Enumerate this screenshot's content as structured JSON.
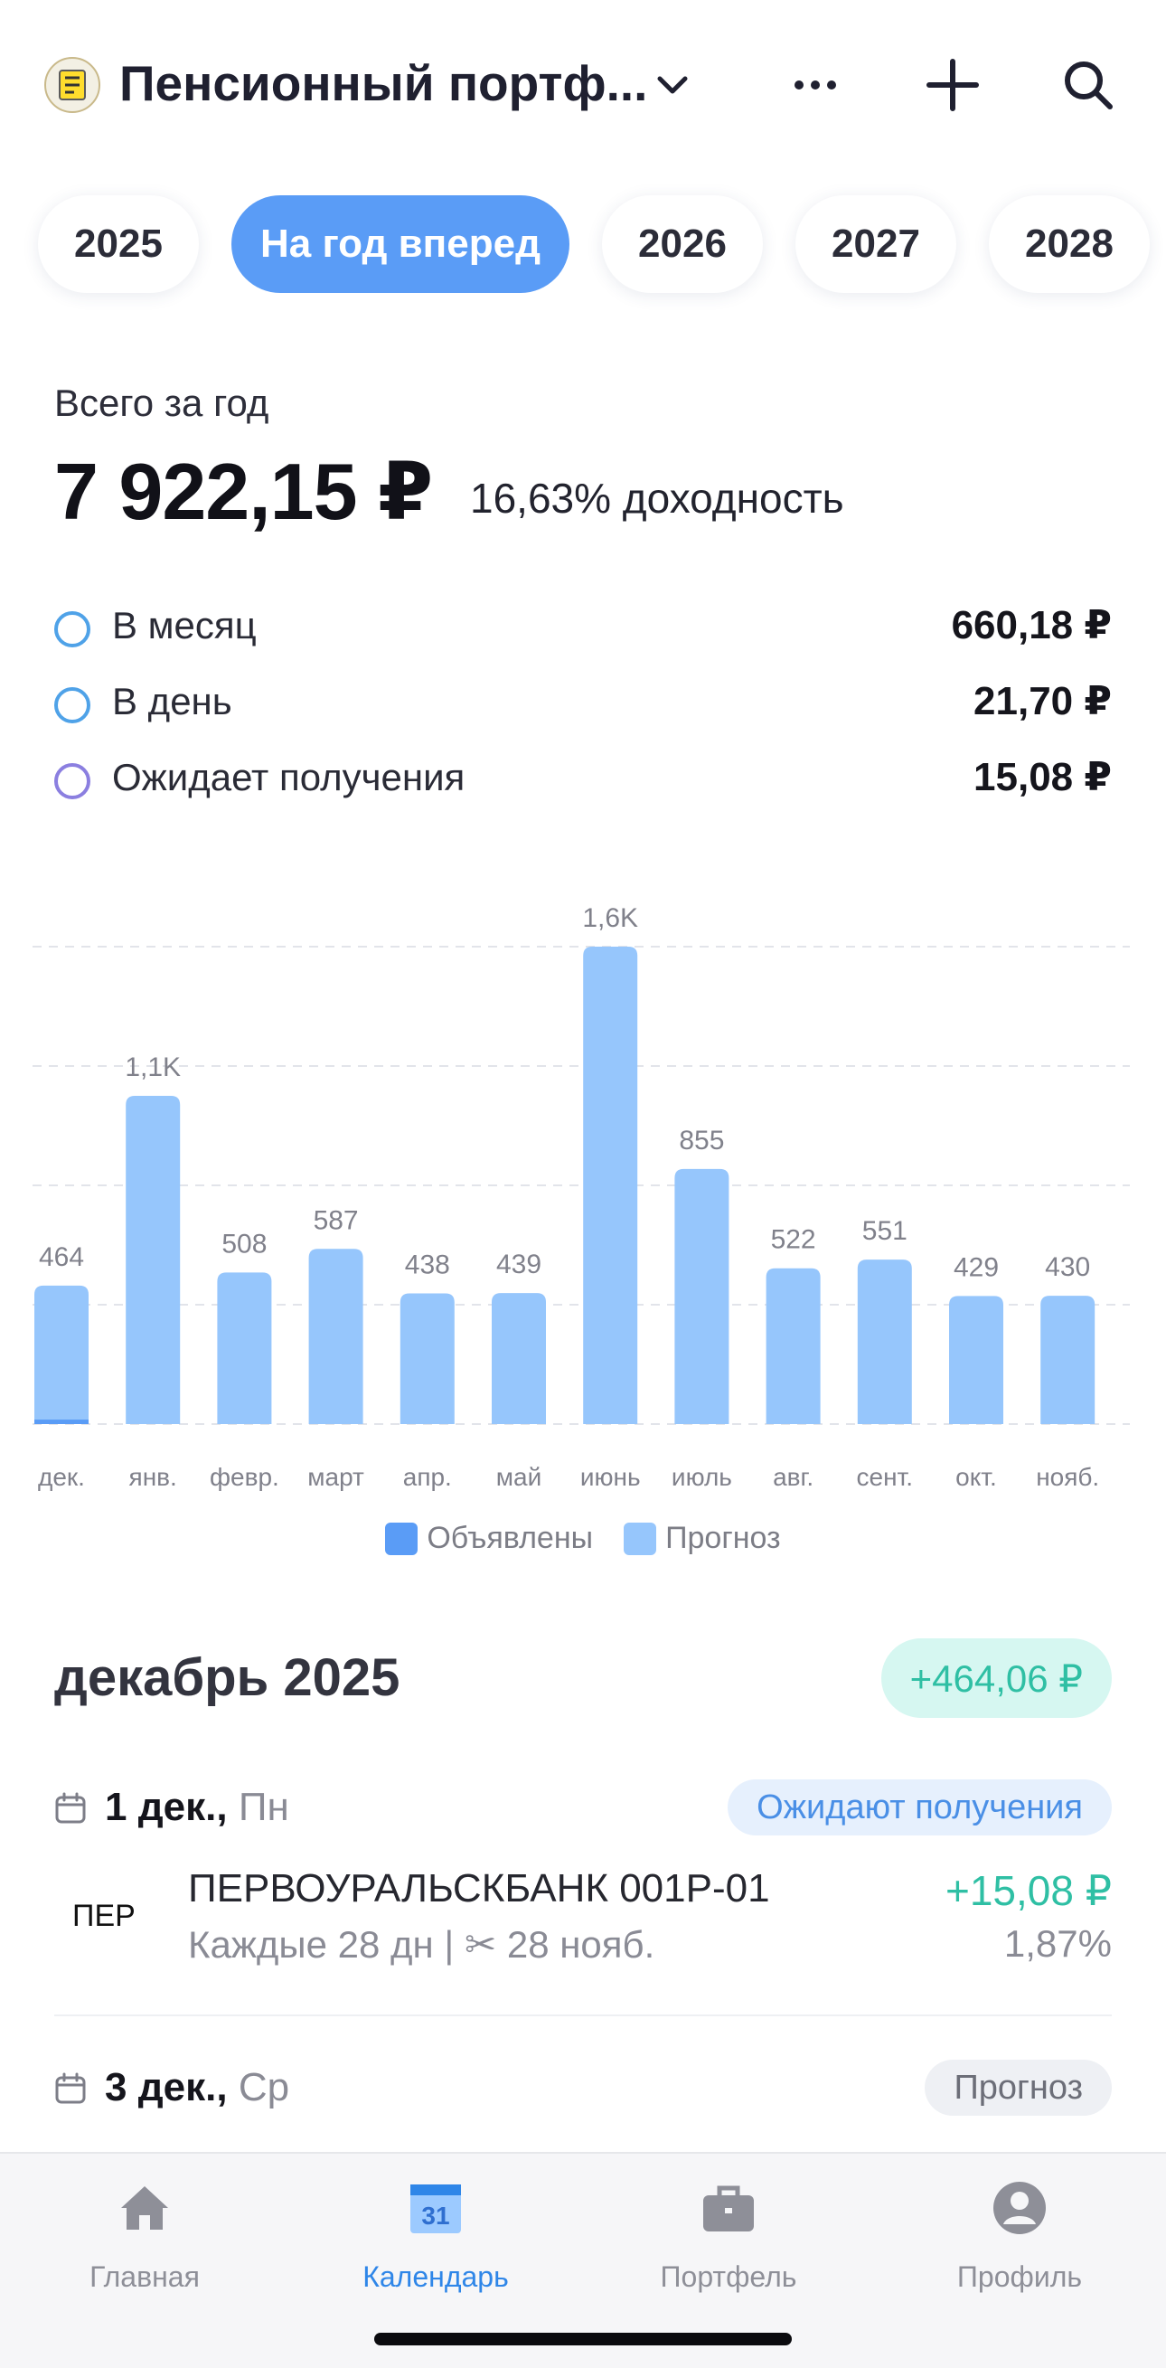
{
  "header": {
    "title": "Пенсионный портф...",
    "icons": [
      "bank-logo-icon",
      "chevron-down-icon",
      "more-icon",
      "plus-icon",
      "search-icon"
    ]
  },
  "year_tabs": [
    {
      "label": "2025",
      "active": false
    },
    {
      "label": "На год вперед",
      "active": true
    },
    {
      "label": "2026",
      "active": false
    },
    {
      "label": "2027",
      "active": false
    },
    {
      "label": "2028",
      "active": false
    }
  ],
  "summary": {
    "label": "Всего за год",
    "amount": "7 922,15 ₽",
    "yield": "16,63% доходность",
    "rows": [
      {
        "label": "В месяц",
        "value": "660,18 ₽"
      },
      {
        "label": "В день",
        "value": "21,70 ₽"
      },
      {
        "label": "Ожидает получения",
        "value": "15,08 ₽"
      }
    ]
  },
  "chart_data": {
    "type": "bar",
    "categories": [
      "дек.",
      "янв.",
      "февр.",
      "март",
      "апр.",
      "май",
      "июнь",
      "июль",
      "авг.",
      "сент.",
      "окт.",
      "нояб."
    ],
    "series": [
      {
        "name": "Объявлены",
        "values": [
          15,
          0,
          0,
          0,
          0,
          0,
          0,
          0,
          0,
          0,
          0,
          0
        ]
      },
      {
        "name": "Прогноз",
        "values": [
          449,
          1100,
          508,
          587,
          438,
          439,
          1600,
          855,
          522,
          551,
          429,
          430
        ]
      }
    ],
    "data_labels": [
      "464",
      "1,1K",
      "508",
      "587",
      "438",
      "439",
      "1,6K",
      "855",
      "522",
      "551",
      "429",
      "430"
    ],
    "ylim": [
      0,
      1600
    ],
    "grid": true,
    "colors": {
      "Объявлены": "#5a9cf6",
      "Прогноз": "#96c6fc"
    },
    "legend": "bottom-center"
  },
  "month": {
    "title": "декабрь 2025",
    "badge": "+464,06 ₽"
  },
  "days": [
    {
      "date": "1 дек.,",
      "weekday": "Пн",
      "tag": "Ожидают получения"
    },
    {
      "date": "3 дек.,",
      "weekday": "Ср",
      "tag": "Прогноз"
    }
  ],
  "payment": {
    "ticker": "ПЕР",
    "name": "ПЕРВОУРАЛЬСКБАНК 001Р-01",
    "detail": "Каждые 28 дн | ✂ 28 нояб.",
    "amount": "+15,08 ₽",
    "percent": "1,87%"
  },
  "tabbar": [
    {
      "label": "Главная",
      "icon": "home-icon",
      "active": false
    },
    {
      "label": "Календарь",
      "icon": "calendar-icon",
      "active": true,
      "badge": "31"
    },
    {
      "label": "Портфель",
      "icon": "briefcase-icon",
      "active": false
    },
    {
      "label": "Профиль",
      "icon": "profile-icon",
      "active": false
    }
  ]
}
